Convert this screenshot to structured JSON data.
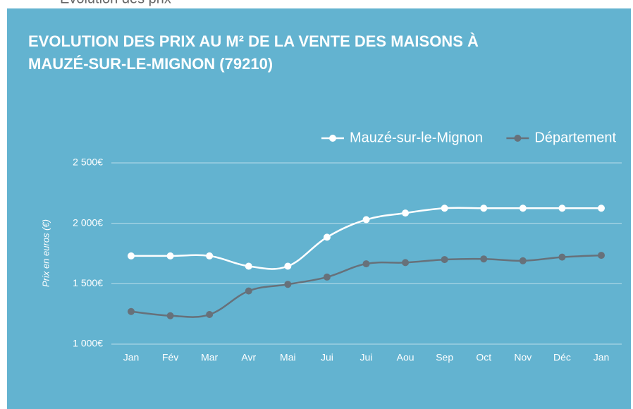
{
  "header": "Évolution des prix",
  "chart_data": {
    "type": "line",
    "title": "EVOLUTION DES PRIX AU M² DE LA VENTE DES MAISONS À",
    "subtitle": "MAUZÉ-SUR-LE-MIGNON (79210)",
    "y_label": "Prix en euros (€)",
    "categories": [
      "Jan",
      "Fév",
      "Mar",
      "Avr",
      "Mai",
      "Jui",
      "Jui",
      "Aou",
      "Sep",
      "Oct",
      "Nov",
      "Déc",
      "Jan"
    ],
    "series": [
      {
        "name": "Mauzé-sur-le-Mignon",
        "color": "#ffffff",
        "values": [
          1730,
          1730,
          1730,
          1645,
          1645,
          1885,
          2030,
          2085,
          2125,
          2125,
          2125,
          2125,
          2125
        ]
      },
      {
        "name": "Département",
        "color": "#67717a",
        "values": [
          1270,
          1235,
          1245,
          1440,
          1495,
          1555,
          1665,
          1675,
          1700,
          1705,
          1690,
          1720,
          1735
        ]
      }
    ],
    "ylim": [
      1000,
      2500
    ],
    "yticks": [
      {
        "value": 1000,
        "label": "1 000€"
      },
      {
        "value": 1500,
        "label": "1 500€"
      },
      {
        "value": 2000,
        "label": "2 000€"
      },
      {
        "value": 2500,
        "label": "2 500€"
      }
    ],
    "grid": true,
    "legend": "top-right"
  }
}
